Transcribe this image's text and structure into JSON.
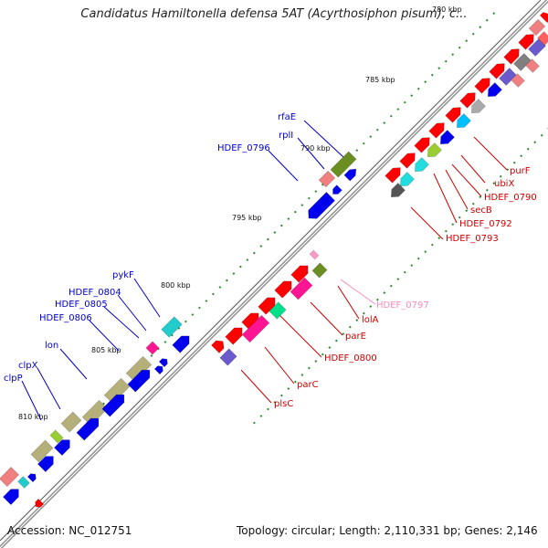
{
  "title": "Candidatus Hamiltonella defensa 5AT (Acyrthosiphon pisum), c...",
  "footer": {
    "accession": "Accession: NC_012751",
    "summary": "Topology: circular; Length: 2,110,331 bp; Genes: 2,146"
  },
  "scale_ticks": [
    "780 kbp",
    "785 kbp",
    "790 kbp",
    "795 kbp",
    "800 kbp",
    "805 kbp",
    "810 kbp"
  ],
  "gene_labels_blue": [
    "rfaE",
    "rplI",
    "HDEF_0796",
    "pykF",
    "HDEF_0804",
    "HDEF_0805",
    "HDEF_0806",
    "lon",
    "clpX",
    "clpP"
  ],
  "gene_labels_red": [
    "purF",
    "ubiX",
    "HDEF_0790",
    "secB",
    "HDEF_0792",
    "HDEF_0793",
    "lolA",
    "parE",
    "HDEF_0800",
    "parC",
    "plsC"
  ],
  "gene_labels_pink": [
    "HDEF_0797"
  ],
  "colors": {
    "backbone": "#8c8c8c",
    "blue_track": "#0000ee",
    "red_track": "#ff0000",
    "olive": "#b5b07a",
    "cyan": "#22cccc",
    "pink": "#ff1493",
    "salmon": "#f08080",
    "purple": "#6a5acd",
    "tick": "#2e8b2e"
  }
}
